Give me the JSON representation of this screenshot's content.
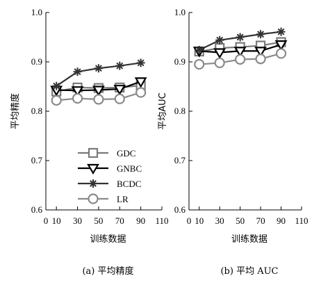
{
  "chart_data": [
    {
      "type": "line",
      "ylabel": "平均精度",
      "xlabel": "训练数据",
      "caption": "(a) 平均精度",
      "xlim": [
        0,
        110
      ],
      "ylim": [
        0.6,
        1.0
      ],
      "xticks": [
        0,
        10,
        30,
        50,
        70,
        90,
        110
      ],
      "yticks": [
        0.6,
        0.7,
        0.8,
        0.9,
        1.0
      ],
      "x": [
        10,
        30,
        50,
        70,
        90
      ],
      "legend_position": "lower-left",
      "series": [
        {
          "name": "GDC",
          "marker": "square",
          "color": "#7a7a7a",
          "values": [
            0.84,
            0.848,
            0.847,
            0.848,
            0.852
          ]
        },
        {
          "name": "GNBC",
          "marker": "triangle",
          "color": "#000000",
          "values": [
            0.843,
            0.842,
            0.843,
            0.845,
            0.86
          ]
        },
        {
          "name": "BCDC",
          "marker": "asterisk",
          "color": "#333333",
          "values": [
            0.851,
            0.88,
            0.887,
            0.892,
            0.898
          ]
        },
        {
          "name": "LR",
          "marker": "circle",
          "color": "#8a8a8a",
          "values": [
            0.822,
            0.826,
            0.824,
            0.825,
            0.838
          ]
        }
      ]
    },
    {
      "type": "line",
      "ylabel": "平均AUC",
      "xlabel": "训练数据",
      "caption": "(b) 平均 AUC",
      "xlim": [
        0,
        110
      ],
      "ylim": [
        0.6,
        1.0
      ],
      "xticks": [
        0,
        10,
        30,
        50,
        70,
        90,
        110
      ],
      "yticks": [
        0.6,
        0.7,
        0.8,
        0.9,
        1.0
      ],
      "x": [
        10,
        30,
        50,
        70,
        90
      ],
      "legend_position": "none",
      "series": [
        {
          "name": "GDC",
          "marker": "square",
          "color": "#7a7a7a",
          "values": [
            0.921,
            0.928,
            0.93,
            0.933,
            0.94
          ]
        },
        {
          "name": "GNBC",
          "marker": "triangle",
          "color": "#000000",
          "values": [
            0.922,
            0.919,
            0.922,
            0.922,
            0.935
          ]
        },
        {
          "name": "BCDC",
          "marker": "asterisk",
          "color": "#333333",
          "values": [
            0.924,
            0.944,
            0.95,
            0.956,
            0.961
          ]
        },
        {
          "name": "LR",
          "marker": "circle",
          "color": "#8a8a8a",
          "values": [
            0.895,
            0.898,
            0.905,
            0.906,
            0.917
          ]
        }
      ]
    }
  ]
}
